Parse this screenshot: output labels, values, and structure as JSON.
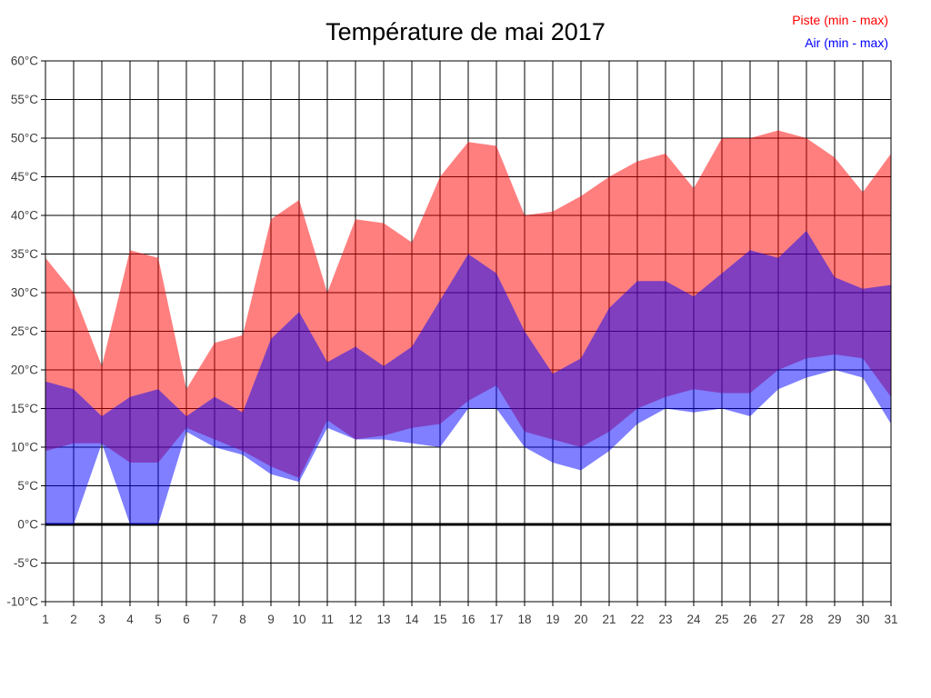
{
  "header": {
    "title": "Température de mai 2017"
  },
  "legend": {
    "piste_label": "Piste (min - max)",
    "air_label": "Air (min - max)"
  },
  "chart_data": {
    "type": "area",
    "title": "Température de mai 2017",
    "xlabel": "",
    "ylabel": "",
    "x": [
      1,
      2,
      3,
      4,
      5,
      6,
      7,
      8,
      9,
      10,
      11,
      12,
      13,
      14,
      15,
      16,
      17,
      18,
      19,
      20,
      21,
      22,
      23,
      24,
      25,
      26,
      27,
      28,
      29,
      30,
      31
    ],
    "ylim": [
      -10,
      60
    ],
    "ytick_step": 5,
    "y_unit": "°C",
    "grid": true,
    "zero_line_bold": true,
    "legend_position": "top-right",
    "background": "#ffffff",
    "grid_color": "#000000",
    "axis_label_color": "#3c3c3c",
    "series": [
      {
        "name": "Piste (min - max)",
        "color": "#ff0000",
        "opacity": 0.5,
        "min": [
          9.5,
          10.5,
          10.5,
          8,
          8,
          12.5,
          11,
          9.5,
          7.5,
          6,
          13.5,
          11,
          11.5,
          12.5,
          13,
          16,
          18,
          12,
          11,
          10,
          12,
          15,
          16.5,
          17.5,
          17,
          17,
          20,
          21.5,
          22,
          21.5,
          16.5
        ],
        "max": [
          34.5,
          30,
          20.5,
          35.5,
          34.5,
          17.5,
          23.5,
          24.5,
          39.5,
          42,
          30,
          39.5,
          39,
          36.5,
          45,
          49.5,
          49,
          40,
          40.5,
          42.5,
          45,
          47,
          48,
          43.5,
          50,
          50,
          51,
          50,
          47.5,
          43,
          48
        ]
      },
      {
        "name": "Air (min - max)",
        "color": "#0000ff",
        "opacity": 0.5,
        "min": [
          0,
          0,
          10.5,
          0,
          0,
          12,
          10,
          9,
          6.5,
          5.5,
          12.5,
          11,
          11,
          10.5,
          10,
          15,
          15,
          10,
          8,
          7,
          9.5,
          13,
          15,
          14.5,
          15,
          14,
          17.5,
          19,
          20,
          19,
          13
        ],
        "max": [
          18.5,
          17.5,
          14,
          16.5,
          17.5,
          14,
          16.5,
          14.5,
          24,
          27.5,
          21,
          23,
          20.5,
          23,
          29,
          35,
          32.5,
          25,
          19.5,
          21.5,
          28,
          31.5,
          31.5,
          29.5,
          32.5,
          35.5,
          34.5,
          38,
          32,
          30.5,
          31
        ]
      }
    ]
  }
}
